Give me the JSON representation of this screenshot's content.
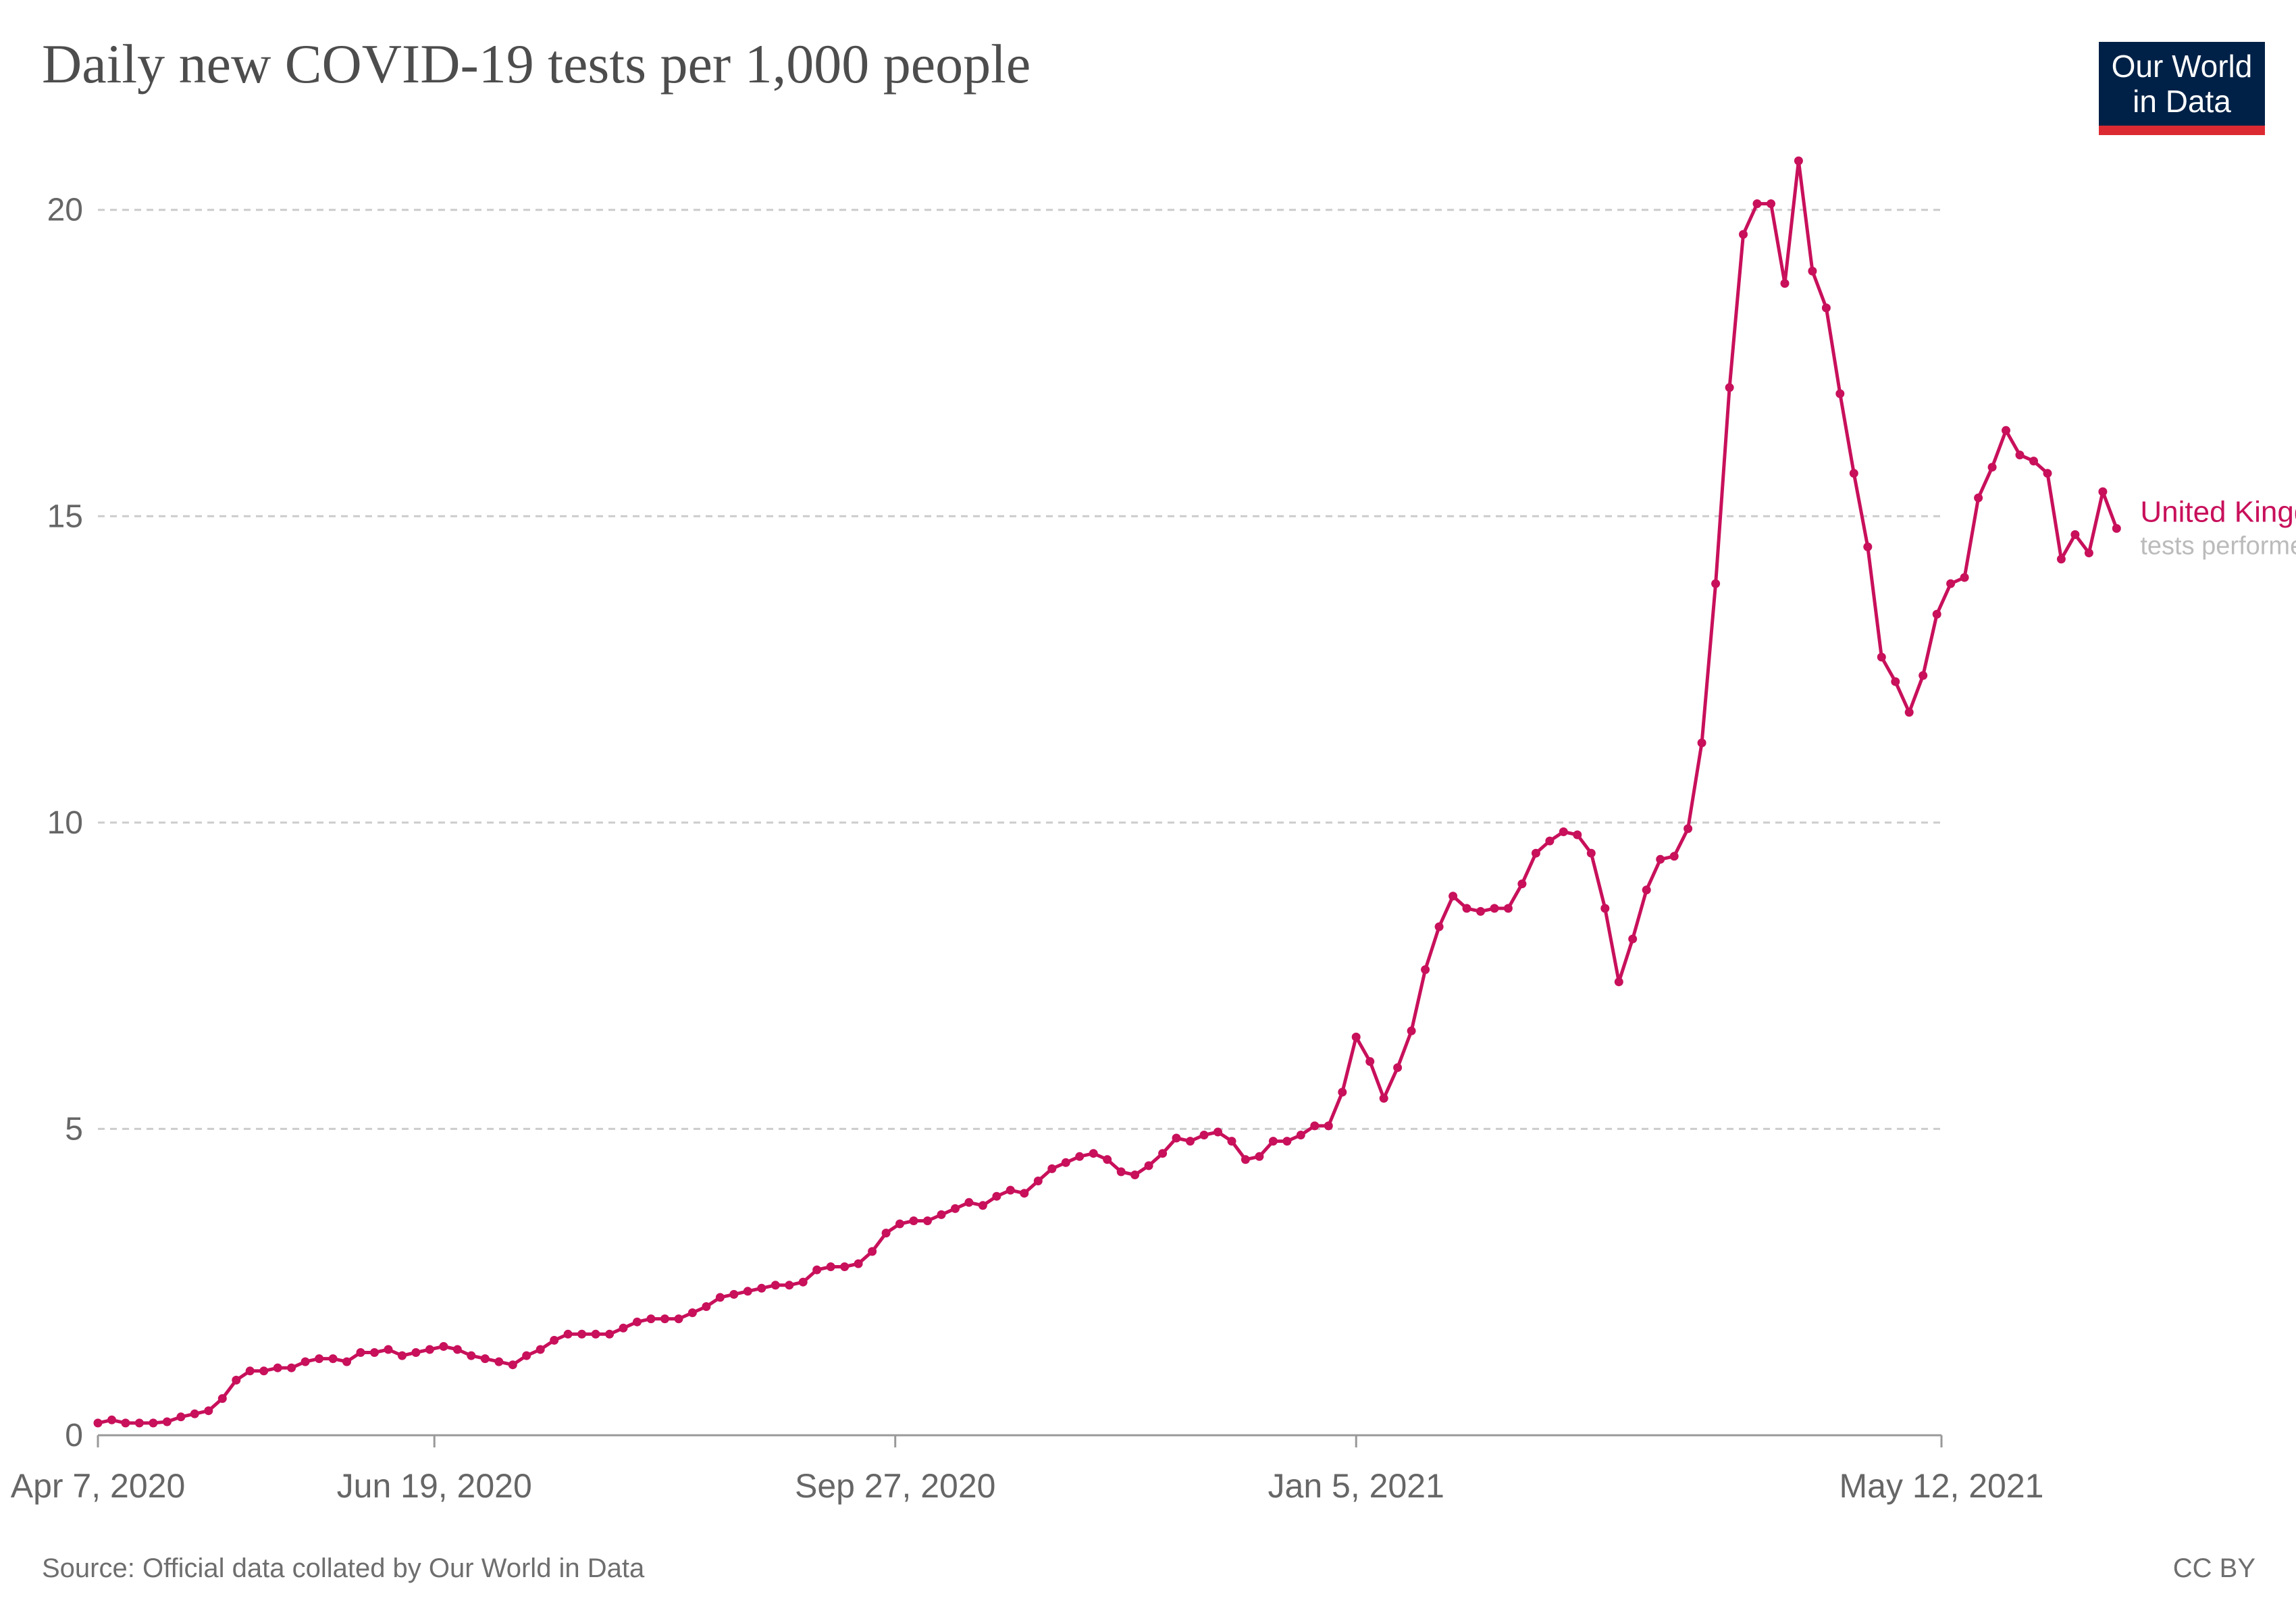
{
  "title": "Daily new COVID-19 tests per 1,000 people",
  "logo": {
    "line1": "Our World",
    "line2": "in Data"
  },
  "source": "Source: Official data collated by Our World in Data",
  "license": "CC BY",
  "colors": {
    "series": "#c8105b",
    "grid": "#cccccc",
    "axis": "#999999",
    "text": "#666666",
    "subtext": "#bbbbbb",
    "logo_bg": "#002147",
    "logo_bar": "#dc2a33"
  },
  "chart_data": {
    "type": "line",
    "title": "Daily new COVID-19 tests per 1,000 people",
    "xlabel": "",
    "ylabel": "",
    "x_tick_labels": [
      "Apr 7, 2020",
      "Jun 19, 2020",
      "Sep 27, 2020",
      "Jan 5, 2021",
      "May 12, 2021"
    ],
    "x_tick_dates": [
      "2020-04-07",
      "2020-06-19",
      "2020-09-27",
      "2021-01-05",
      "2021-05-12"
    ],
    "y_ticks": [
      0,
      5,
      10,
      15,
      20
    ],
    "ylim": [
      0,
      21
    ],
    "xlim": [
      "2020-04-07",
      "2021-05-12"
    ],
    "grid": "horizontal dashed",
    "legend": "end-of-line label",
    "series": [
      {
        "name": "United Kingdom",
        "sublabel": "tests performed",
        "x_start": "2020-04-07",
        "x_step_days": 3,
        "values": [
          0.2,
          0.25,
          0.2,
          0.2,
          0.2,
          0.22,
          0.3,
          0.35,
          0.4,
          0.6,
          0.9,
          1.05,
          1.05,
          1.1,
          1.1,
          1.2,
          1.25,
          1.25,
          1.2,
          1.35,
          1.35,
          1.4,
          1.3,
          1.35,
          1.4,
          1.45,
          1.4,
          1.3,
          1.25,
          1.2,
          1.15,
          1.3,
          1.4,
          1.55,
          1.65,
          1.65,
          1.65,
          1.65,
          1.75,
          1.85,
          1.9,
          1.9,
          1.9,
          2.0,
          2.1,
          2.25,
          2.3,
          2.35,
          2.4,
          2.45,
          2.45,
          2.5,
          2.7,
          2.75,
          2.75,
          2.8,
          3.0,
          3.3,
          3.45,
          3.5,
          3.5,
          3.6,
          3.7,
          3.8,
          3.75,
          3.9,
          4.0,
          3.95,
          4.15,
          4.35,
          4.45,
          4.55,
          4.6,
          4.5,
          4.3,
          4.25,
          4.4,
          4.6,
          4.85,
          4.8,
          4.9,
          4.95,
          4.8,
          4.5,
          4.55,
          4.8,
          4.8,
          4.9,
          5.05,
          5.05,
          5.6,
          6.5,
          6.1,
          5.5,
          6.0,
          6.6,
          7.6,
          8.3,
          8.8,
          8.6,
          8.55,
          8.6,
          8.6,
          9.0,
          9.5,
          9.7,
          9.85,
          9.8,
          9.5,
          8.6,
          7.4,
          8.1,
          8.9,
          9.4,
          9.45,
          9.9,
          11.3,
          13.9,
          17.1,
          19.6,
          20.1,
          20.1,
          18.8,
          20.8,
          19.0,
          18.4,
          17.0,
          15.7,
          14.5,
          12.7,
          12.3,
          11.8,
          12.4,
          13.4,
          13.9,
          14.0,
          15.3,
          15.8,
          16.4,
          16.0,
          15.9,
          15.7,
          14.3,
          14.7,
          14.4,
          15.4,
          14.8
        ]
      }
    ]
  }
}
